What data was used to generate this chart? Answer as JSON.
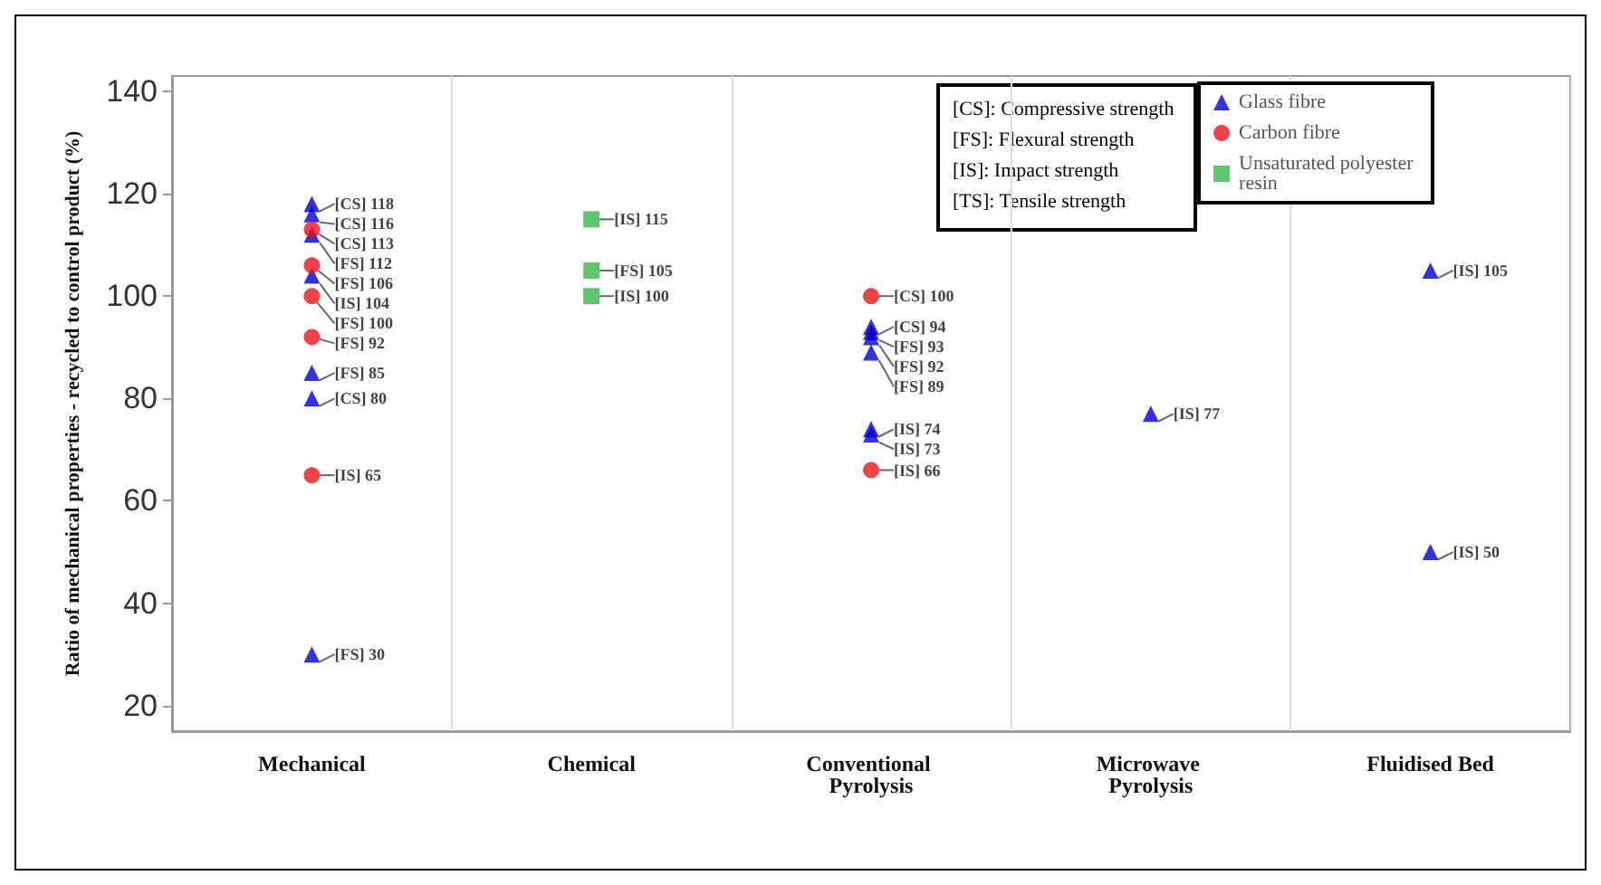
{
  "chart_data": {
    "type": "scatter",
    "ylabel": "Ratio of mechanical properties - recycled to control product (%)",
    "categories": [
      "Mechanical",
      "Chemical",
      "Conventional Pyrolysis",
      "Microwave Pyrolysis",
      "Fluidised Bed"
    ],
    "series": [
      {
        "name": "Glass fibre",
        "color": "#0000cc",
        "marker": "triangle",
        "x": [
          "Mechanical",
          "Mechanical",
          "Mechanical",
          "Mechanical",
          "Mechanical",
          "Mechanical",
          "Mechanical",
          "Conventional Pyrolysis",
          "Conventional Pyrolysis",
          "Conventional Pyrolysis",
          "Conventional Pyrolysis",
          "Conventional Pyrolysis",
          "Conventional Pyrolysis",
          "Microwave Pyrolysis",
          "Fluidised Bed",
          "Fluidised Bed"
        ],
        "values": [
          118,
          116,
          112,
          104,
          85,
          80,
          30,
          94,
          93,
          92,
          89,
          74,
          73,
          77,
          105,
          50
        ],
        "value_labels": [
          "[CS] 118",
          "[CS] 116",
          "[FS] 112",
          "[IS] 104",
          "[FS] 85",
          "[CS] 80",
          "[FS] 30",
          "[CS] 94",
          "[FS] 93",
          "[FS] 92",
          "[FS] 89",
          "[IS] 74",
          "[IS] 73",
          "[IS] 77",
          "[IS] 105",
          "[IS] 50"
        ]
      },
      {
        "name": "Carbon fibre",
        "color": "#e8141c",
        "marker": "circle",
        "x": [
          "Mechanical",
          "Mechanical",
          "Mechanical",
          "Mechanical",
          "Mechanical",
          "Conventional Pyrolysis",
          "Conventional Pyrolysis"
        ],
        "values": [
          113,
          106,
          100,
          92,
          65,
          100,
          66
        ],
        "value_labels": [
          "[CS] 113",
          "[FS] 106",
          "[FS] 100",
          "[FS] 92",
          "[IS] 65",
          "[CS] 100",
          "[IS] 66"
        ]
      },
      {
        "name": "Unsaturated polyester resin",
        "color": "#3cb44b",
        "marker": "square",
        "x": [
          "Chemical",
          "Chemical",
          "Chemical"
        ],
        "values": [
          115,
          105,
          100
        ],
        "value_labels": [
          "[IS] 115",
          "[FS] 105",
          "[IS] 100"
        ]
      }
    ],
    "ylim": [
      15,
      143
    ],
    "yticks": [
      20,
      40,
      60,
      80,
      100,
      120,
      140
    ],
    "grid": "x",
    "legend": "top right",
    "annotations": [
      "[CS]: Compressive strength",
      "[FS]: Flexural strength",
      "[IS]: Impact strength",
      "[TS]: Tensile strength"
    ]
  }
}
